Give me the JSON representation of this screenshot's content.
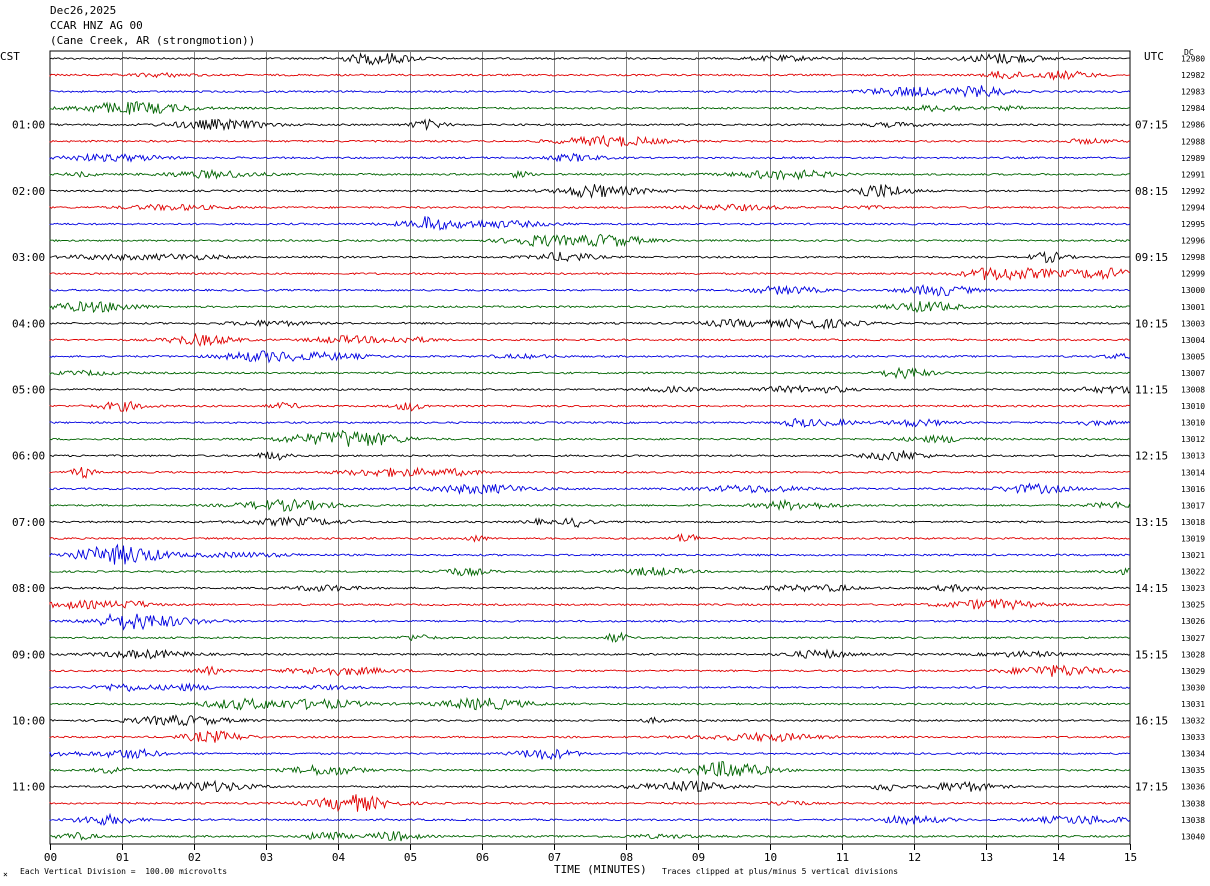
{
  "header": {
    "date": "Dec26,2025",
    "station": "CCAR HNZ AG 00",
    "location": "(Cane Creek, AR (strongmotion))"
  },
  "labels": {
    "left_tz": "CST",
    "right_tz": "UTC",
    "dc": "DC"
  },
  "footer": {
    "xlabel": "TIME (MINUTES)",
    "scale_note": "Each Vertical Division =  100.00 microvolts",
    "clip_note": "Traces clipped at plus/minus 5 vertical divisions",
    "mark": "⨯"
  },
  "chart_data": {
    "type": "line",
    "xlabel": "TIME (MINUTES)",
    "x_ticks": [
      "00",
      "01",
      "02",
      "03",
      "04",
      "05",
      "06",
      "07",
      "08",
      "09",
      "10",
      "11",
      "12",
      "13",
      "14",
      "15"
    ],
    "xlim": [
      0,
      15
    ],
    "trace_colors": [
      "#000000",
      "#e00000",
      "#0000e0",
      "#006400"
    ],
    "left_hour_labels": [
      "01:00",
      "02:00",
      "03:00",
      "04:00",
      "05:00",
      "06:00",
      "07:00",
      "08:00",
      "09:00",
      "10:00",
      "11:00"
    ],
    "right_hour_labels": [
      "07:15",
      "08:15",
      "09:15",
      "10:15",
      "11:15",
      "12:15",
      "13:15",
      "14:15",
      "15:15",
      "16:15",
      "17:15"
    ],
    "dc_offsets": [
      "12980",
      "12982",
      "12983",
      "12984",
      "12986",
      "12988",
      "12989",
      "12991",
      "12992",
      "12994",
      "12995",
      "12996",
      "12998",
      "12999",
      "13000",
      "13001",
      "13003",
      "13004",
      "13005",
      "13007",
      "13008",
      "13010",
      "13010",
      "13012",
      "13013",
      "13014",
      "13016",
      "13017",
      "13018",
      "13019",
      "13021",
      "13022",
      "13023",
      "13025",
      "13026",
      "13027",
      "13028",
      "13029",
      "13030",
      "13031",
      "13032",
      "13033",
      "13034",
      "13035",
      "13036",
      "13038",
      "13038",
      "13040"
    ],
    "trace_count": 48
  }
}
